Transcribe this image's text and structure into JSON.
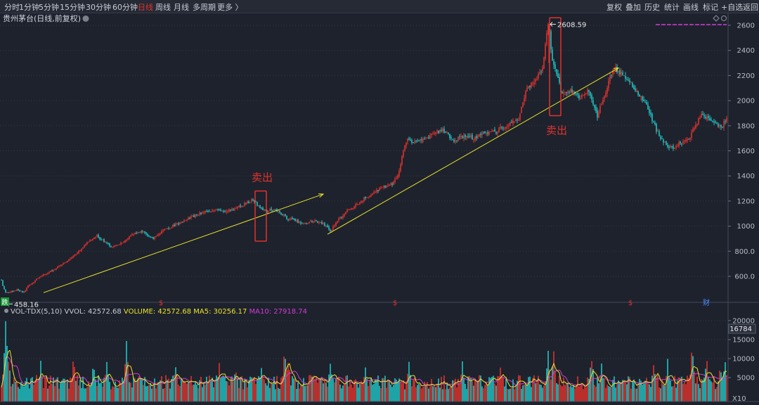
{
  "toolbar": {
    "left": [
      "分时",
      "1分钟",
      "5分钟",
      "15分钟",
      "30分钟",
      "60分钟",
      "日线",
      "周线",
      "月线",
      "多周期",
      "更多 〉"
    ],
    "active_index": 6,
    "right": [
      "复权",
      "叠加",
      "历史",
      "统计",
      "画线",
      "标记",
      "+自选",
      "返回"
    ]
  },
  "stock_title": "贵州茅台(日线,前复权)",
  "colors": {
    "background": "#1e222d",
    "up": "#e0332d",
    "down": "#1fc4c4",
    "trendline": "#e8e32a",
    "annotation_box": "#e0332d",
    "ma5": "#e8e32a",
    "ma10": "#d23bd6",
    "grid": "#333a48"
  },
  "chart_data": [
    {
      "type": "candlestick",
      "title": "贵州茅台(日线,前复权)",
      "ylim": [
        400,
        2700
      ],
      "y_ticks": [
        "600.0",
        "800.0",
        "1000",
        "1200",
        "1400",
        "1600",
        "1800",
        "2000",
        "2200",
        "2400",
        "2600"
      ],
      "y_tick_values": [
        600,
        800,
        1000,
        1200,
        1400,
        1600,
        1800,
        2000,
        2200,
        2400,
        2600
      ],
      "grid": true,
      "anchors": [
        [
          0,
          640
        ],
        [
          3,
          540
        ],
        [
          8,
          470
        ],
        [
          16,
          478
        ],
        [
          25,
          495
        ],
        [
          33,
          470
        ],
        [
          40,
          520
        ],
        [
          55,
          590
        ],
        [
          75,
          650
        ],
        [
          90,
          700
        ],
        [
          108,
          780
        ],
        [
          122,
          860
        ],
        [
          138,
          920
        ],
        [
          150,
          870
        ],
        [
          160,
          830
        ],
        [
          172,
          860
        ],
        [
          185,
          920
        ],
        [
          200,
          960
        ],
        [
          218,
          900
        ],
        [
          232,
          960
        ],
        [
          250,
          1010
        ],
        [
          268,
          1060
        ],
        [
          285,
          1100
        ],
        [
          302,
          1130
        ],
        [
          320,
          1120
        ],
        [
          338,
          1150
        ],
        [
          350,
          1180
        ],
        [
          360,
          1210
        ],
        [
          368,
          1160
        ],
        [
          378,
          1120
        ],
        [
          390,
          1135
        ],
        [
          400,
          1100
        ],
        [
          410,
          1060
        ],
        [
          422,
          1040
        ],
        [
          435,
          1020
        ],
        [
          448,
          1040
        ],
        [
          460,
          1020
        ],
        [
          470,
          960
        ],
        [
          480,
          1040
        ],
        [
          492,
          1110
        ],
        [
          505,
          1160
        ],
        [
          518,
          1220
        ],
        [
          530,
          1260
        ],
        [
          545,
          1310
        ],
        [
          558,
          1340
        ],
        [
          566,
          1400
        ],
        [
          572,
          1550
        ],
        [
          580,
          1700
        ],
        [
          587,
          1660
        ],
        [
          600,
          1690
        ],
        [
          615,
          1720
        ],
        [
          630,
          1770
        ],
        [
          645,
          1680
        ],
        [
          660,
          1720
        ],
        [
          675,
          1700
        ],
        [
          690,
          1750
        ],
        [
          705,
          1750
        ],
        [
          722,
          1810
        ],
        [
          738,
          1860
        ],
        [
          750,
          2100
        ],
        [
          765,
          2190
        ],
        [
          773,
          2270
        ],
        [
          778,
          2550
        ],
        [
          781,
          2608
        ],
        [
          785,
          2350
        ],
        [
          792,
          2200
        ],
        [
          800,
          2050
        ],
        [
          812,
          2080
        ],
        [
          825,
          2030
        ],
        [
          838,
          2080
        ],
        [
          850,
          1880
        ],
        [
          858,
          2000
        ],
        [
          868,
          2200
        ],
        [
          876,
          2260
        ],
        [
          884,
          2210
        ],
        [
          893,
          2180
        ],
        [
          905,
          2080
        ],
        [
          918,
          1980
        ],
        [
          930,
          1820
        ],
        [
          940,
          1690
        ],
        [
          950,
          1640
        ],
        [
          958,
          1620
        ],
        [
          968,
          1670
        ],
        [
          978,
          1680
        ],
        [
          988,
          1780
        ],
        [
          998,
          1890
        ],
        [
          1008,
          1860
        ],
        [
          1018,
          1810
        ],
        [
          1028,
          1800
        ],
        [
          1034,
          1860
        ]
      ],
      "trendlines": [
        {
          "from": [
            62,
            470
          ],
          "to": [
            460,
            1255
          ],
          "arrow": true
        },
        {
          "from": [
            466,
            935
          ],
          "to": [
            880,
            2260
          ],
          "arrow": true
        }
      ],
      "annotations": [
        {
          "text": "卖出",
          "x": 371,
          "box_low": 880,
          "box_high": 1280
        },
        {
          "text": "卖出",
          "x": 790,
          "box_low": 1880,
          "box_high": 2660
        }
      ],
      "extremes": [
        {
          "label": "2608.59",
          "x": 781,
          "value": 2608.59,
          "arrow": "left"
        },
        {
          "label": "458.16",
          "x": 8,
          "value": 458.16,
          "arrow": "left"
        }
      ],
      "event_markers": [
        {
          "label": "$",
          "x": 229,
          "color": "#e0332d"
        },
        {
          "label": "$",
          "x": 562,
          "color": "#e0332d"
        },
        {
          "label": "$",
          "x": 897,
          "color": "#e0332d"
        },
        {
          "label": "财",
          "x": 1005,
          "color": "#4a8cff"
        }
      ],
      "corner_label": "跌"
    },
    {
      "type": "bar",
      "title": "VOL-TDX(5,10)",
      "ylim": [
        0,
        21000
      ],
      "y_ticks": [
        "5000",
        "10000",
        "15000",
        "20000"
      ],
      "y_tick_values": [
        5000,
        10000,
        15000,
        20000
      ],
      "current_label": "16784",
      "unit_label": "X10",
      "series": [
        {
          "name": "VOLUME",
          "value": "42572.68"
        },
        {
          "name": "MA5",
          "value": "30256.17"
        },
        {
          "name": "MA10",
          "value": "27918.74"
        }
      ],
      "vvol": "42572.68",
      "spikes": [
        [
          8,
          20000
        ],
        [
          12,
          11000
        ],
        [
          58,
          9000
        ],
        [
          105,
          11000
        ],
        [
          133,
          8500
        ],
        [
          152,
          10500
        ],
        [
          180,
          14000
        ],
        [
          250,
          9500
        ],
        [
          312,
          9000
        ],
        [
          335,
          8000
        ],
        [
          372,
          8500
        ],
        [
          405,
          14500
        ],
        [
          410,
          10500
        ],
        [
          470,
          9500
        ],
        [
          520,
          8000
        ],
        [
          582,
          10200
        ],
        [
          658,
          9000
        ],
        [
          712,
          7600
        ],
        [
          780,
          12500
        ],
        [
          788,
          12500
        ],
        [
          842,
          11500
        ],
        [
          856,
          9000
        ],
        [
          930,
          10000
        ],
        [
          950,
          10000
        ],
        [
          985,
          14200
        ],
        [
          1005,
          11000
        ],
        [
          1025,
          9500
        ],
        [
          1032,
          10500
        ]
      ],
      "base_level": 4200
    }
  ]
}
